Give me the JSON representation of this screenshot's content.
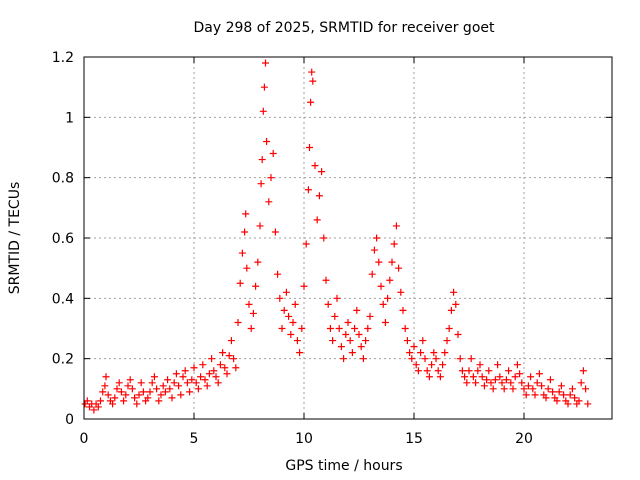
{
  "chart_data": {
    "type": "scatter",
    "title": "Day 298 of 2025, SRMTID for receiver goet",
    "xlabel": "GPS time / hours",
    "ylabel": "SRMTID / TECUs",
    "xlim": [
      0,
      24
    ],
    "ylim": [
      0,
      1.2
    ],
    "xticks": [
      0,
      5,
      10,
      15,
      20
    ],
    "xtick_labels": [
      "0",
      "5",
      "10",
      "15",
      "20"
    ],
    "yticks": [
      0,
      0.2,
      0.4,
      0.6,
      0.8,
      1.0,
      1.2
    ],
    "ytick_labels": [
      "0",
      "0.2",
      "0.4",
      "0.6",
      "0.8",
      "1",
      "1.2"
    ],
    "grid": true,
    "marker": "+",
    "series": [
      {
        "name": "SRMTID",
        "color": "#ff0000",
        "points": [
          [
            0.05,
            0.05
          ],
          [
            0.15,
            0.06
          ],
          [
            0.25,
            0.04
          ],
          [
            0.35,
            0.05
          ],
          [
            0.45,
            0.03
          ],
          [
            0.55,
            0.05
          ],
          [
            0.65,
            0.04
          ],
          [
            0.75,
            0.06
          ],
          [
            0.85,
            0.09
          ],
          [
            0.95,
            0.11
          ],
          [
            1.0,
            0.14
          ],
          [
            1.1,
            0.08
          ],
          [
            1.2,
            0.06
          ],
          [
            1.3,
            0.05
          ],
          [
            1.4,
            0.07
          ],
          [
            1.5,
            0.1
          ],
          [
            1.6,
            0.12
          ],
          [
            1.7,
            0.09
          ],
          [
            1.8,
            0.06
          ],
          [
            1.9,
            0.08
          ],
          [
            2.0,
            0.11
          ],
          [
            2.1,
            0.13
          ],
          [
            2.2,
            0.1
          ],
          [
            2.3,
            0.07
          ],
          [
            2.4,
            0.05
          ],
          [
            2.5,
            0.08
          ],
          [
            2.6,
            0.12
          ],
          [
            2.7,
            0.09
          ],
          [
            2.8,
            0.06
          ],
          [
            2.9,
            0.07
          ],
          [
            3.0,
            0.09
          ],
          [
            3.1,
            0.12
          ],
          [
            3.2,
            0.14
          ],
          [
            3.3,
            0.1
          ],
          [
            3.4,
            0.06
          ],
          [
            3.5,
            0.08
          ],
          [
            3.6,
            0.11
          ],
          [
            3.7,
            0.09
          ],
          [
            3.8,
            0.13
          ],
          [
            3.9,
            0.1
          ],
          [
            4.0,
            0.07
          ],
          [
            4.1,
            0.12
          ],
          [
            4.2,
            0.15
          ],
          [
            4.3,
            0.11
          ],
          [
            4.4,
            0.08
          ],
          [
            4.5,
            0.14
          ],
          [
            4.6,
            0.16
          ],
          [
            4.7,
            0.12
          ],
          [
            4.8,
            0.09
          ],
          [
            4.9,
            0.13
          ],
          [
            5.0,
            0.17
          ],
          [
            5.1,
            0.12
          ],
          [
            5.2,
            0.1
          ],
          [
            5.3,
            0.14
          ],
          [
            5.4,
            0.18
          ],
          [
            5.5,
            0.13
          ],
          [
            5.6,
            0.11
          ],
          [
            5.7,
            0.15
          ],
          [
            5.8,
            0.2
          ],
          [
            5.9,
            0.16
          ],
          [
            6.0,
            0.14
          ],
          [
            6.1,
            0.12
          ],
          [
            6.2,
            0.18
          ],
          [
            6.3,
            0.22
          ],
          [
            6.4,
            0.17
          ],
          [
            6.5,
            0.15
          ],
          [
            6.6,
            0.21
          ],
          [
            6.7,
            0.26
          ],
          [
            6.8,
            0.2
          ],
          [
            6.9,
            0.17
          ],
          [
            7.0,
            0.32
          ],
          [
            7.1,
            0.45
          ],
          [
            7.2,
            0.55
          ],
          [
            7.3,
            0.62
          ],
          [
            7.35,
            0.68
          ],
          [
            7.4,
            0.5
          ],
          [
            7.5,
            0.38
          ],
          [
            7.6,
            0.3
          ],
          [
            7.7,
            0.35
          ],
          [
            7.8,
            0.44
          ],
          [
            7.9,
            0.52
          ],
          [
            8.0,
            0.64
          ],
          [
            8.05,
            0.78
          ],
          [
            8.1,
            0.86
          ],
          [
            8.15,
            1.02
          ],
          [
            8.2,
            1.1
          ],
          [
            8.25,
            1.18
          ],
          [
            8.3,
            0.92
          ],
          [
            8.4,
            0.72
          ],
          [
            8.5,
            0.8
          ],
          [
            8.6,
            0.88
          ],
          [
            8.7,
            0.62
          ],
          [
            8.8,
            0.48
          ],
          [
            8.9,
            0.4
          ],
          [
            9.0,
            0.3
          ],
          [
            9.1,
            0.36
          ],
          [
            9.2,
            0.42
          ],
          [
            9.3,
            0.34
          ],
          [
            9.4,
            0.28
          ],
          [
            9.5,
            0.32
          ],
          [
            9.6,
            0.38
          ],
          [
            9.7,
            0.26
          ],
          [
            9.8,
            0.22
          ],
          [
            9.9,
            0.3
          ],
          [
            10.0,
            0.44
          ],
          [
            10.1,
            0.58
          ],
          [
            10.2,
            0.76
          ],
          [
            10.25,
            0.9
          ],
          [
            10.3,
            1.05
          ],
          [
            10.35,
            1.15
          ],
          [
            10.4,
            1.12
          ],
          [
            10.5,
            0.84
          ],
          [
            10.6,
            0.66
          ],
          [
            10.7,
            0.74
          ],
          [
            10.8,
            0.82
          ],
          [
            10.9,
            0.6
          ],
          [
            11.0,
            0.46
          ],
          [
            11.1,
            0.38
          ],
          [
            11.2,
            0.3
          ],
          [
            11.3,
            0.26
          ],
          [
            11.4,
            0.34
          ],
          [
            11.5,
            0.4
          ],
          [
            11.6,
            0.3
          ],
          [
            11.7,
            0.24
          ],
          [
            11.8,
            0.2
          ],
          [
            11.9,
            0.28
          ],
          [
            12.0,
            0.32
          ],
          [
            12.1,
            0.26
          ],
          [
            12.2,
            0.22
          ],
          [
            12.3,
            0.3
          ],
          [
            12.4,
            0.36
          ],
          [
            12.5,
            0.28
          ],
          [
            12.6,
            0.24
          ],
          [
            12.7,
            0.2
          ],
          [
            12.8,
            0.26
          ],
          [
            12.9,
            0.3
          ],
          [
            13.0,
            0.34
          ],
          [
            13.1,
            0.48
          ],
          [
            13.2,
            0.56
          ],
          [
            13.3,
            0.6
          ],
          [
            13.4,
            0.52
          ],
          [
            13.5,
            0.44
          ],
          [
            13.6,
            0.38
          ],
          [
            13.7,
            0.32
          ],
          [
            13.8,
            0.4
          ],
          [
            13.9,
            0.46
          ],
          [
            14.0,
            0.52
          ],
          [
            14.1,
            0.58
          ],
          [
            14.2,
            0.64
          ],
          [
            14.3,
            0.5
          ],
          [
            14.4,
            0.42
          ],
          [
            14.5,
            0.36
          ],
          [
            14.6,
            0.3
          ],
          [
            14.7,
            0.26
          ],
          [
            14.8,
            0.22
          ],
          [
            14.9,
            0.2
          ],
          [
            15.0,
            0.24
          ],
          [
            15.1,
            0.18
          ],
          [
            15.2,
            0.16
          ],
          [
            15.3,
            0.22
          ],
          [
            15.4,
            0.26
          ],
          [
            15.5,
            0.2
          ],
          [
            15.6,
            0.16
          ],
          [
            15.7,
            0.14
          ],
          [
            15.8,
            0.18
          ],
          [
            15.9,
            0.22
          ],
          [
            16.0,
            0.2
          ],
          [
            16.1,
            0.16
          ],
          [
            16.2,
            0.14
          ],
          [
            16.3,
            0.18
          ],
          [
            16.4,
            0.22
          ],
          [
            16.5,
            0.26
          ],
          [
            16.6,
            0.3
          ],
          [
            16.7,
            0.36
          ],
          [
            16.8,
            0.42
          ],
          [
            16.9,
            0.38
          ],
          [
            17.0,
            0.28
          ],
          [
            17.1,
            0.2
          ],
          [
            17.2,
            0.16
          ],
          [
            17.3,
            0.14
          ],
          [
            17.4,
            0.12
          ],
          [
            17.5,
            0.16
          ],
          [
            17.6,
            0.2
          ],
          [
            17.7,
            0.14
          ],
          [
            17.8,
            0.12
          ],
          [
            17.9,
            0.16
          ],
          [
            18.0,
            0.18
          ],
          [
            18.1,
            0.14
          ],
          [
            18.2,
            0.11
          ],
          [
            18.3,
            0.13
          ],
          [
            18.4,
            0.16
          ],
          [
            18.5,
            0.12
          ],
          [
            18.6,
            0.1
          ],
          [
            18.7,
            0.13
          ],
          [
            18.8,
            0.18
          ],
          [
            18.9,
            0.14
          ],
          [
            19.0,
            0.12
          ],
          [
            19.1,
            0.1
          ],
          [
            19.2,
            0.13
          ],
          [
            19.3,
            0.16
          ],
          [
            19.4,
            0.12
          ],
          [
            19.5,
            0.1
          ],
          [
            19.6,
            0.14
          ],
          [
            19.7,
            0.18
          ],
          [
            19.8,
            0.15
          ],
          [
            19.9,
            0.12
          ],
          [
            20.0,
            0.1
          ],
          [
            20.1,
            0.08
          ],
          [
            20.2,
            0.11
          ],
          [
            20.3,
            0.14
          ],
          [
            20.4,
            0.1
          ],
          [
            20.5,
            0.08
          ],
          [
            20.6,
            0.12
          ],
          [
            20.7,
            0.15
          ],
          [
            20.8,
            0.11
          ],
          [
            20.9,
            0.08
          ],
          [
            21.0,
            0.07
          ],
          [
            21.1,
            0.1
          ],
          [
            21.2,
            0.13
          ],
          [
            21.3,
            0.09
          ],
          [
            21.4,
            0.07
          ],
          [
            21.5,
            0.06
          ],
          [
            21.6,
            0.09
          ],
          [
            21.7,
            0.11
          ],
          [
            21.8,
            0.08
          ],
          [
            21.9,
            0.06
          ],
          [
            22.0,
            0.05
          ],
          [
            22.1,
            0.08
          ],
          [
            22.2,
            0.1
          ],
          [
            22.3,
            0.07
          ],
          [
            22.4,
            0.05
          ],
          [
            22.5,
            0.06
          ],
          [
            22.6,
            0.12
          ],
          [
            22.7,
            0.16
          ],
          [
            22.8,
            0.1
          ],
          [
            22.9,
            0.05
          ]
        ]
      }
    ]
  }
}
